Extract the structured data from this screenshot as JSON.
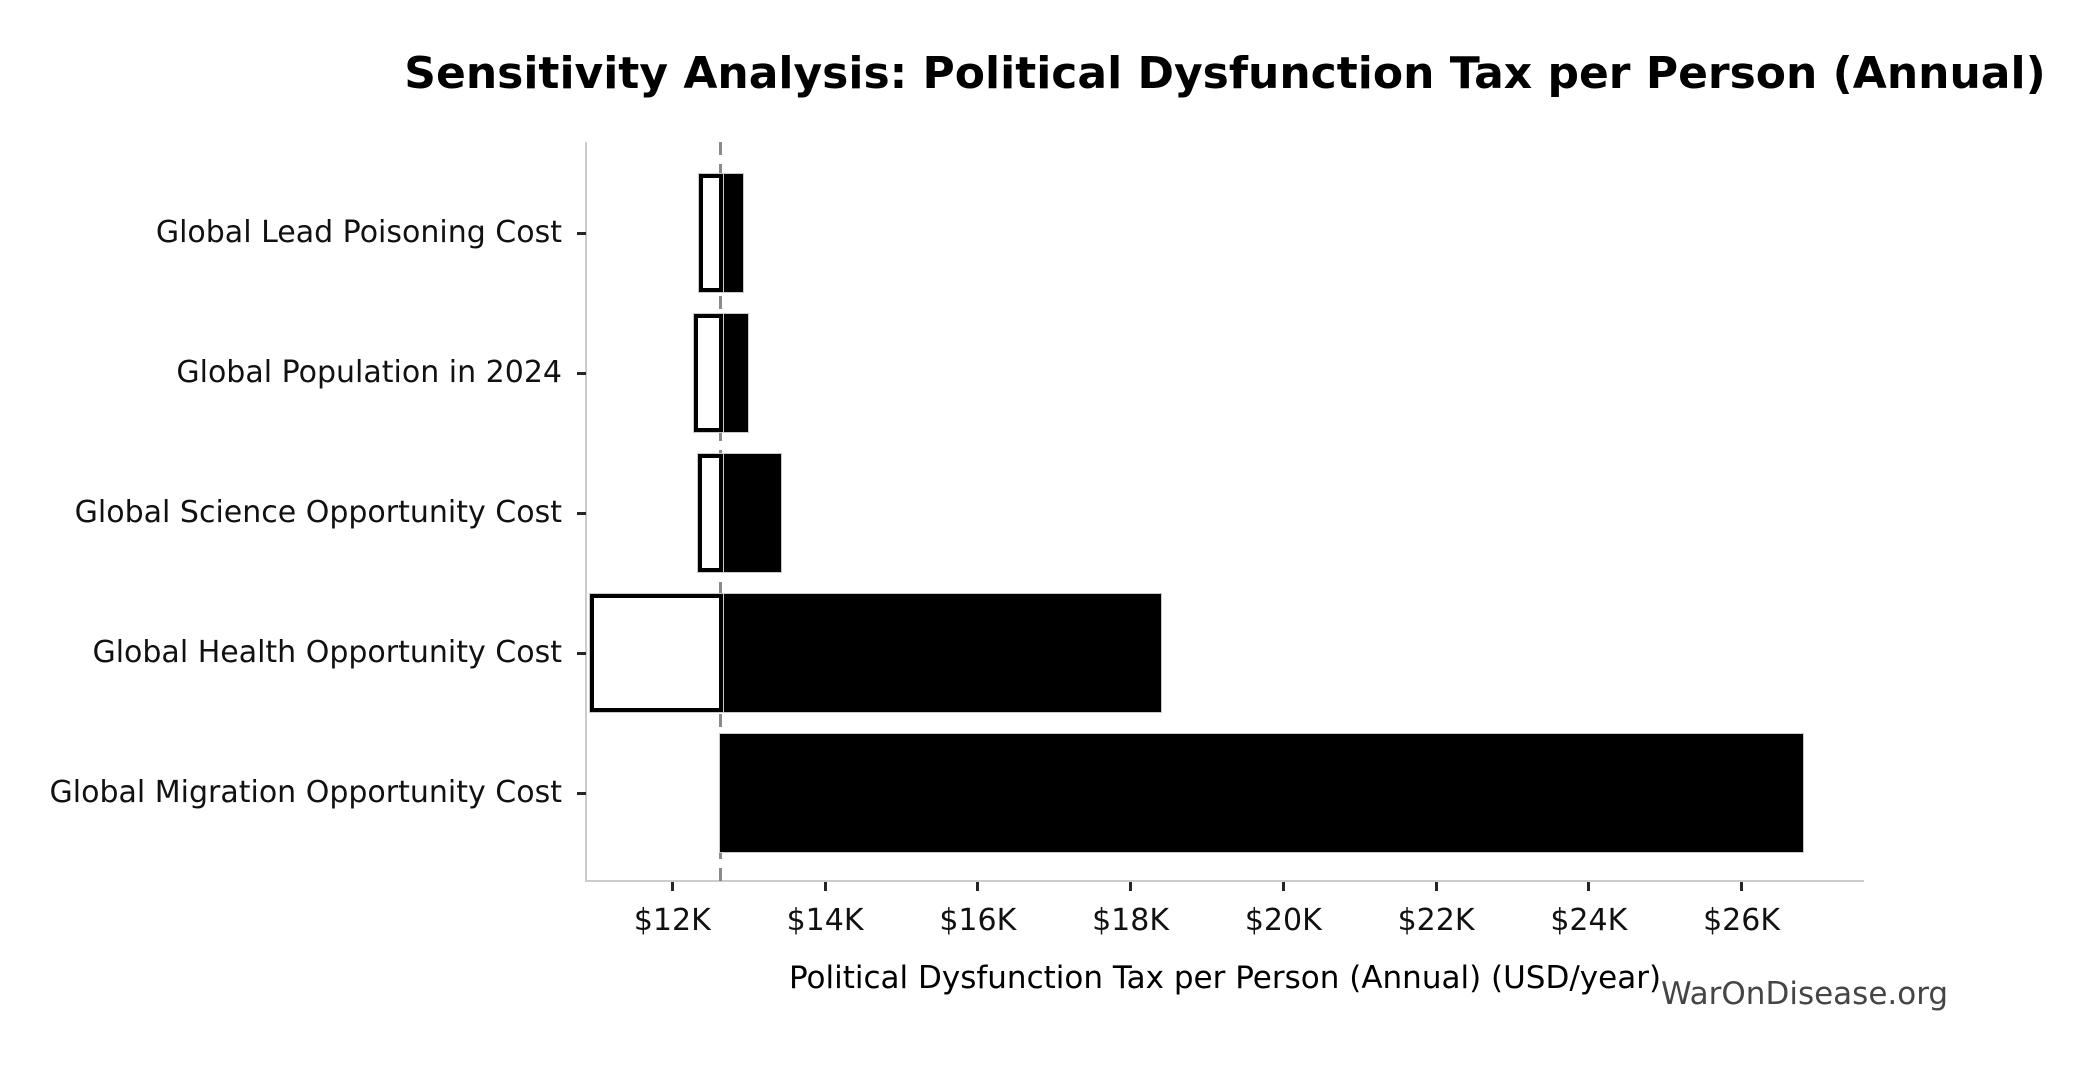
{
  "watermark": "WarOnDisease.org",
  "colors": {
    "background": "#ffffff",
    "bar_high_fill": "#000000",
    "bar_low_fill": "#ffffff",
    "bar_edge": "#000000",
    "bar_faint_outline": "#c9c9c9",
    "baseline_dash": "#8a8a8a",
    "spine": "#cccccc",
    "tick_mark": "#262626",
    "tick_text": "#111111",
    "watermark_text": "#454545"
  },
  "chart_data": {
    "type": "bar",
    "subtype": "tornado-sensitivity",
    "orientation": "horizontal",
    "title": "Sensitivity Analysis: Political Dysfunction Tax per Person (Annual)",
    "xlabel": "Political Dysfunction Tax per Person (Annual) (USD/year)",
    "ylabel": "",
    "grid": false,
    "legend": null,
    "x_unit": "thousand USD per year",
    "xlim": [
      10.87,
      27.59
    ],
    "baseline_value": 12.63,
    "baseline_style": "dashed-gray-vertical",
    "xticks": [
      12,
      14,
      16,
      18,
      20,
      22,
      24,
      26
    ],
    "xtick_labels": [
      "$12K",
      "$14K",
      "$16K",
      "$18K",
      "$20K",
      "$22K",
      "$24K",
      "$26K"
    ],
    "categories": [
      "Global Lead Poisoning Cost",
      "Global Population in 2024",
      "Global Science Opportunity Cost",
      "Global Health Opportunity Cost",
      "Global Migration Opportunity Cost"
    ],
    "series": [
      {
        "name": "low-side (white bar, black edge)",
        "values": [
          12.35,
          12.29,
          12.34,
          10.92,
          null
        ]
      },
      {
        "name": "high-side (black bar)",
        "values": [
          12.92,
          12.99,
          13.42,
          18.4,
          26.8
        ]
      }
    ]
  }
}
